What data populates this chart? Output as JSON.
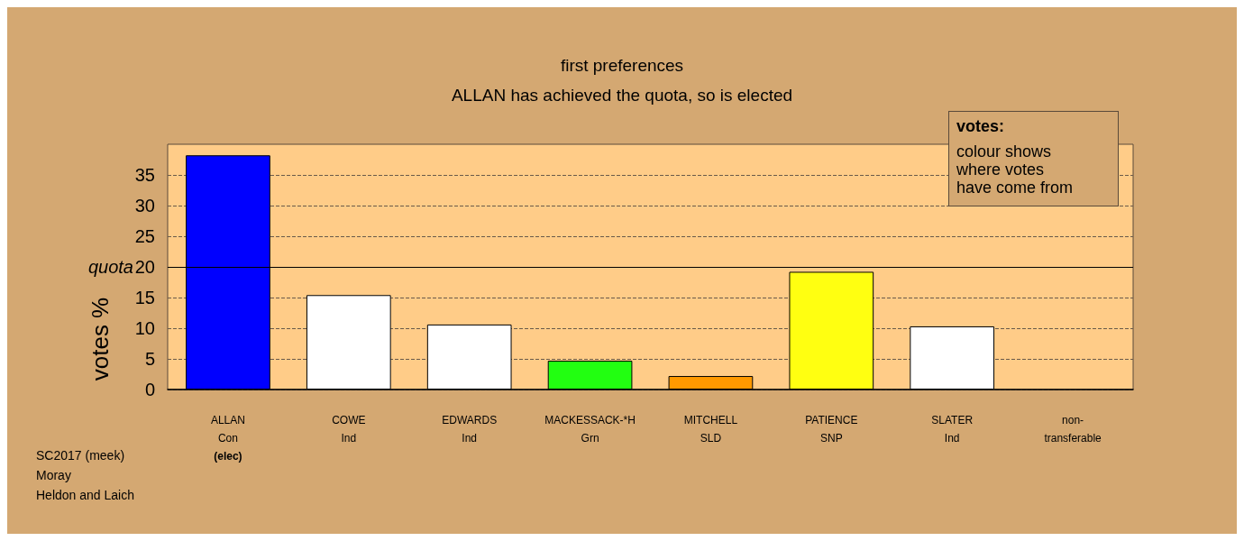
{
  "chart_data": {
    "type": "bar",
    "title": "first preferences",
    "subtitle": "ALLAN has achieved the quota, so is elected",
    "ylabel": "votes %",
    "categories": [
      "ALLAN\nCon\n(elec)",
      "COWE\nInd",
      "EDWARDS\nInd",
      "MACKESSACK-*H\nGrn",
      "MITCHELL\nSLD",
      "PATIENCE\nSNP",
      "SLATER\nInd",
      "non-\ntransferable"
    ],
    "values": [
      38.2,
      15.4,
      10.6,
      4.7,
      2.2,
      19.2,
      10.3,
      0
    ],
    "colors": [
      "#0000ff",
      "#ffffff",
      "#ffffff",
      "#22ff11",
      "#ff9900",
      "#ffff11",
      "#ffffff",
      "#ffffff"
    ],
    "ylim": [
      0,
      40
    ],
    "yticks": [
      0,
      5,
      10,
      15,
      20,
      25,
      30,
      35
    ],
    "grid": true,
    "ref_lines": [
      {
        "axis": "y",
        "value": 20,
        "label": "quota",
        "color": "#000000"
      }
    ],
    "annotations": [
      "votes:\ncolour shows\nwhere votes\nhave come from",
      "SC2017 (meek)\nMoray\nHeldon and Laich"
    ]
  }
}
